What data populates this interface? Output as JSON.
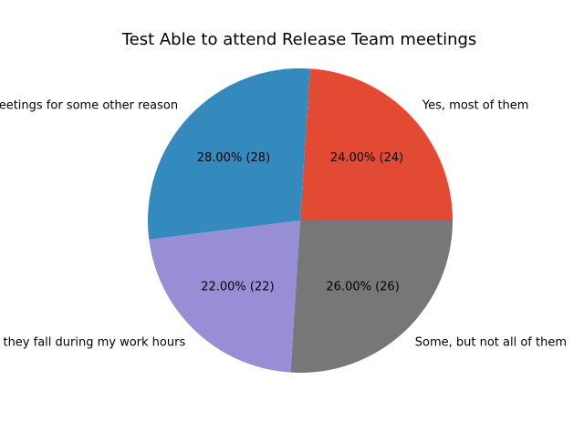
{
  "chart_data": {
    "type": "pie",
    "title": "Test Able to attend Release Team meetings",
    "slices": [
      {
        "label": "Yes, most of them",
        "value": 24,
        "pct_text": "24.00%  (24)",
        "color": "#E24A33"
      },
      {
        "label": "No, I can't make meetings for some other reason",
        "value": 28,
        "pct_text": "28.00%  (28)",
        "color": "#348ABD"
      },
      {
        "label": "No, they fall during my work hours",
        "value": 22,
        "pct_text": "22.00%  (22)",
        "color": "#988ED5"
      },
      {
        "label": "Some, but not all of them",
        "value": 26,
        "pct_text": "26.00%  (26)",
        "color": "#777777"
      }
    ]
  }
}
